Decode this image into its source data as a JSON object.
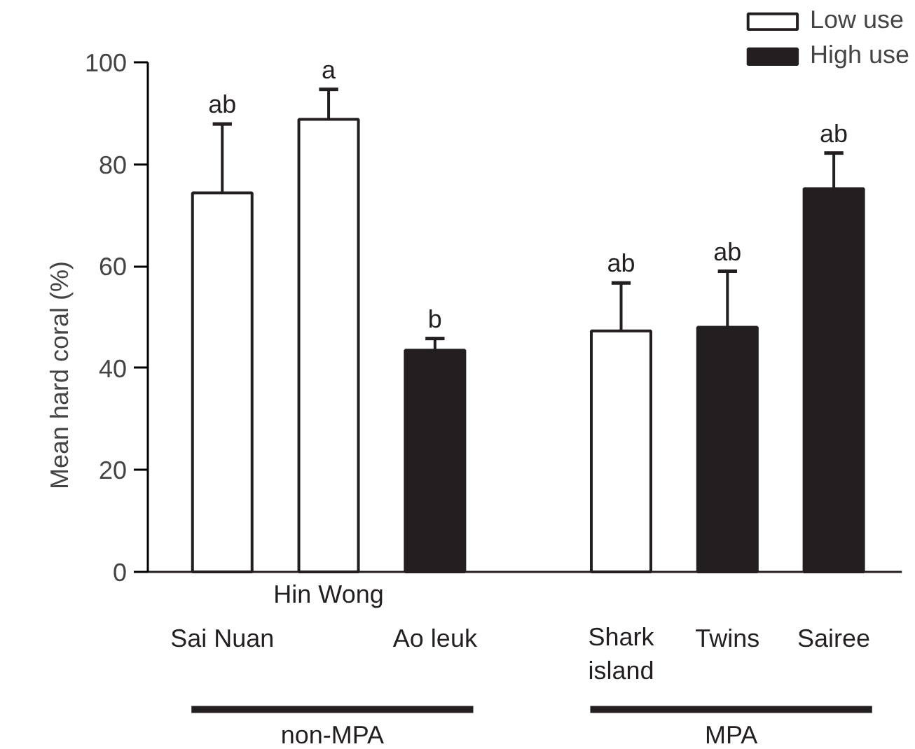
{
  "chart_data": {
    "type": "bar",
    "ylabel": "Mean hard coral (%)",
    "categories": [
      "Sai Nuan",
      "Hin Wong",
      "Ao leuk",
      "Shark island",
      "Twins",
      "Sairee"
    ],
    "series": [
      {
        "name": "Low use",
        "color": "#ffffff",
        "values": [
          74.4,
          88.8,
          null,
          47.3,
          null,
          null
        ],
        "errors": [
          [
            74.4,
            87.9
          ],
          [
            88.8,
            94.7
          ],
          null,
          [
            47.3,
            56.7
          ],
          null,
          null
        ]
      },
      {
        "name": "High use",
        "color": "#231f20",
        "values": [
          null,
          null,
          43.5,
          null,
          48.0,
          75.2
        ],
        "errors": [
          null,
          null,
          [
            43.5,
            45.8
          ],
          null,
          [
            48.0,
            59.0
          ],
          [
            75.2,
            82.2
          ]
        ]
      }
    ],
    "ylim": [
      0,
      100
    ],
    "yticks": [
      0,
      20,
      40,
      60,
      80,
      100
    ],
    "grid": false,
    "legend": "top right",
    "annotations": [
      {
        "text": "ab",
        "x": "Sai Nuan",
        "y": 74.4
      },
      {
        "text": "a",
        "x": "Hin Wong",
        "y": 88.8
      },
      {
        "text": "b",
        "x": "Ao leuk",
        "y": 43.5
      },
      {
        "text": "ab",
        "x": "Shark island",
        "y": 47.3
      },
      {
        "text": "ab",
        "x": "Twins",
        "y": 48.0
      },
      {
        "text": "ab",
        "x": "Sairee",
        "y": 75.2
      },
      "non-MPA",
      "MPA"
    ]
  }
}
